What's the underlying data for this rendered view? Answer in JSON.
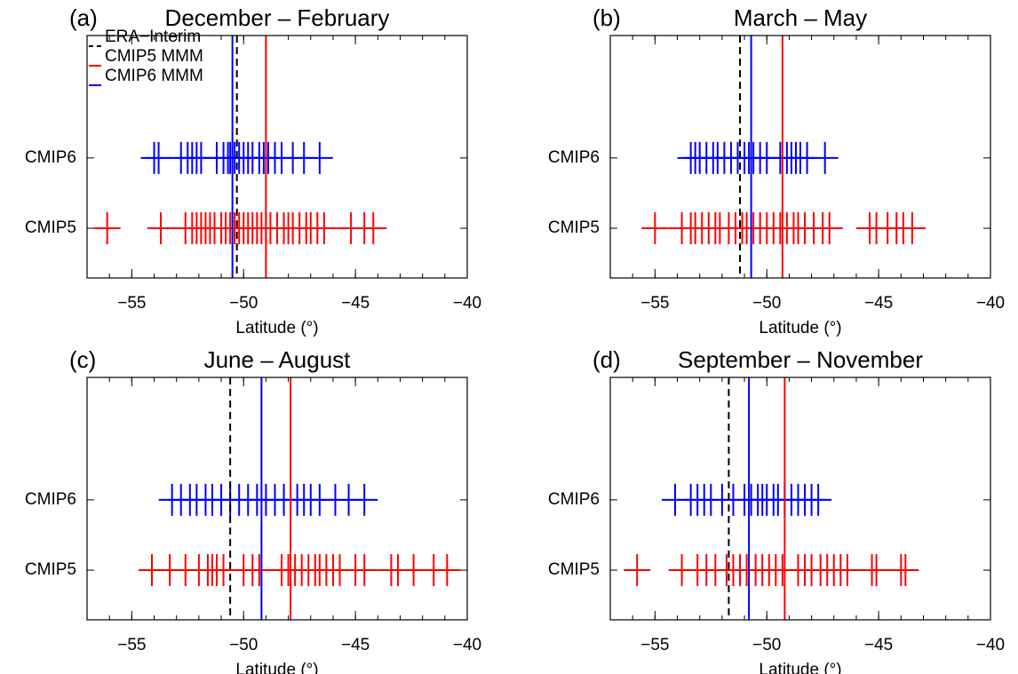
{
  "chart_data": [
    {
      "type": "strip",
      "panel_label": "(a)",
      "title": "December – February",
      "xlabel": "Latitude (°)",
      "categories": [
        "CMIP6",
        "CMIP5"
      ],
      "series": [
        {
          "color": "#0000ff",
          "values": [
            -54.0,
            -53.8,
            -52.8,
            -52.5,
            -52.3,
            -52.1,
            -51.9,
            -51.2,
            -50.9,
            -50.7,
            -50.6,
            -50.4,
            -50.2,
            -50.0,
            -49.8,
            -49.6,
            -49.3,
            -49.1,
            -48.9,
            -48.6,
            -48.3,
            -47.8,
            -47.3,
            -46.6
          ]
        },
        {
          "color": "#ff0000",
          "values": [
            -56.1,
            -53.7,
            -52.6,
            -52.3,
            -52.1,
            -51.9,
            -51.7,
            -51.5,
            -51.3,
            -51.0,
            -50.8,
            -50.6,
            -50.4,
            -50.2,
            -50.0,
            -49.8,
            -49.6,
            -49.4,
            -49.2,
            -49.0,
            -48.8,
            -48.5,
            -48.2,
            -48.0,
            -47.8,
            -47.5,
            -47.2,
            -47.0,
            -46.7,
            -46.4,
            -45.2,
            -44.6,
            -44.2
          ]
        }
      ],
      "reference_lines": [
        {
          "name": "ERA−Interim",
          "color": "#000000",
          "dashed": true,
          "value": -50.3
        },
        {
          "name": "CMIP5 MMM",
          "color": "#ff0000",
          "dashed": false,
          "value": -49.0
        },
        {
          "name": "CMIP6 MMM",
          "color": "#0000ff",
          "dashed": false,
          "value": -50.5
        }
      ],
      "legend": "upper left",
      "xlim": [
        -57,
        -40
      ],
      "xticks": [
        {
          "value": -55,
          "label": "−55"
        },
        {
          "value": -50,
          "label": "−50"
        },
        {
          "value": -45,
          "label": "−45"
        },
        {
          "value": -40,
          "label": "−40"
        }
      ]
    },
    {
      "type": "strip",
      "panel_label": "(b)",
      "title": "March – May",
      "xlabel": "Latitude (°)",
      "categories": [
        "CMIP6",
        "CMIP5"
      ],
      "series": [
        {
          "color": "#0000ff",
          "values": [
            -53.4,
            -53.2,
            -53.0,
            -52.7,
            -52.4,
            -52.2,
            -51.9,
            -51.6,
            -51.3,
            -51.0,
            -50.8,
            -50.6,
            -50.3,
            -50.0,
            -49.4,
            -49.1,
            -48.9,
            -48.7,
            -48.5,
            -48.2,
            -47.4
          ]
        },
        {
          "color": "#ff0000",
          "values": [
            -55.0,
            -53.8,
            -53.4,
            -53.2,
            -52.9,
            -52.6,
            -52.3,
            -52.1,
            -51.7,
            -51.4,
            -51.1,
            -50.9,
            -50.6,
            -50.3,
            -50.0,
            -49.7,
            -49.4,
            -49.1,
            -48.8,
            -48.6,
            -48.3,
            -47.9,
            -47.5,
            -47.2,
            -45.4,
            -45.1,
            -44.6,
            -44.2,
            -43.9,
            -43.5
          ]
        }
      ],
      "reference_lines": [
        {
          "color": "#000000",
          "dashed": true,
          "value": -51.2
        },
        {
          "color": "#ff0000",
          "dashed": false,
          "value": -49.3
        },
        {
          "color": "#0000ff",
          "dashed": false,
          "value": -50.7
        }
      ],
      "xlim": [
        -57,
        -40
      ],
      "xticks": [
        {
          "value": -55,
          "label": "−55"
        },
        {
          "value": -50,
          "label": "−50"
        },
        {
          "value": -45,
          "label": "−45"
        },
        {
          "value": -40,
          "label": "−40"
        }
      ]
    },
    {
      "type": "strip",
      "panel_label": "(c)",
      "title": "June – August",
      "xlabel": "Latitude (°)",
      "categories": [
        "CMIP6",
        "CMIP5"
      ],
      "series": [
        {
          "color": "#0000ff",
          "values": [
            -53.2,
            -52.8,
            -52.4,
            -52.1,
            -51.7,
            -51.4,
            -51.0,
            -50.6,
            -50.2,
            -49.8,
            -49.4,
            -49.0,
            -48.6,
            -48.2,
            -47.9,
            -47.6,
            -47.3,
            -47.0,
            -46.6,
            -45.9,
            -45.3,
            -44.6
          ]
        },
        {
          "color": "#ff0000",
          "values": [
            -54.1,
            -53.3,
            -52.6,
            -52.0,
            -51.6,
            -51.4,
            -51.2,
            -50.9,
            -50.0,
            -49.6,
            -49.3,
            -48.3,
            -48.0,
            -47.7,
            -47.4,
            -47.1,
            -46.8,
            -46.6,
            -46.3,
            -46.0,
            -45.7,
            -45.0,
            -44.6,
            -43.4,
            -43.1,
            -42.4,
            -41.5,
            -40.9
          ]
        }
      ],
      "reference_lines": [
        {
          "color": "#000000",
          "dashed": true,
          "value": -50.6
        },
        {
          "color": "#ff0000",
          "dashed": false,
          "value": -47.9
        },
        {
          "color": "#0000ff",
          "dashed": false,
          "value": -49.2
        }
      ],
      "xlim": [
        -57,
        -40
      ],
      "xticks": [
        {
          "value": -55,
          "label": "−55"
        },
        {
          "value": -50,
          "label": "−50"
        },
        {
          "value": -45,
          "label": "−45"
        },
        {
          "value": -40,
          "label": "−40"
        }
      ]
    },
    {
      "type": "strip",
      "panel_label": "(d)",
      "title": "September – November",
      "xlabel": "Latitude (°)",
      "categories": [
        "CMIP6",
        "CMIP5"
      ],
      "series": [
        {
          "color": "#0000ff",
          "values": [
            -54.1,
            -53.4,
            -53.1,
            -52.8,
            -52.5,
            -52.0,
            -51.5,
            -51.0,
            -50.7,
            -50.4,
            -50.2,
            -50.0,
            -49.7,
            -49.5,
            -49.2,
            -48.9,
            -48.6,
            -48.3,
            -48.0,
            -47.7
          ]
        },
        {
          "color": "#ff0000",
          "values": [
            -55.8,
            -53.8,
            -53.1,
            -52.7,
            -52.3,
            -51.8,
            -51.5,
            -51.2,
            -50.9,
            -50.5,
            -50.2,
            -49.9,
            -49.6,
            -49.3,
            -48.6,
            -48.3,
            -48.0,
            -47.6,
            -47.3,
            -47.0,
            -46.7,
            -46.4,
            -45.3,
            -45.1,
            -44.0,
            -43.8
          ]
        }
      ],
      "reference_lines": [
        {
          "color": "#000000",
          "dashed": true,
          "value": -51.7
        },
        {
          "color": "#ff0000",
          "dashed": false,
          "value": -49.2
        },
        {
          "color": "#0000ff",
          "dashed": false,
          "value": -50.8
        }
      ],
      "xlim": [
        -57,
        -40
      ],
      "xticks": [
        {
          "value": -55,
          "label": "−55"
        },
        {
          "value": -50,
          "label": "−50"
        },
        {
          "value": -45,
          "label": "−45"
        },
        {
          "value": -40,
          "label": "−40"
        }
      ]
    }
  ]
}
